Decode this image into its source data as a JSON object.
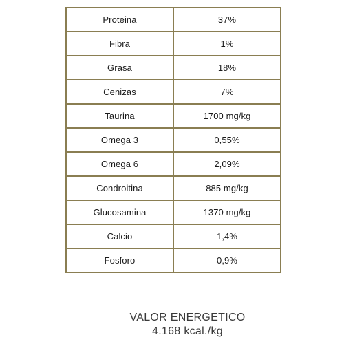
{
  "table": {
    "rows": [
      {
        "name": "Proteina",
        "value": "37%"
      },
      {
        "name": "Fibra",
        "value": "1%"
      },
      {
        "name": "Grasa",
        "value": "18%"
      },
      {
        "name": "Cenizas",
        "value": "7%"
      },
      {
        "name": "Taurina",
        "value": "1700 mg/kg"
      },
      {
        "name": "Omega 3",
        "value": "0,55%"
      },
      {
        "name": "Omega 6",
        "value": "2,09%"
      },
      {
        "name": "Condroitina",
        "value": "885 mg/kg"
      },
      {
        "name": "Glucosamina",
        "value": "1370 mg/kg"
      },
      {
        "name": "Calcio",
        "value": "1,4%"
      },
      {
        "name": "Fosforo",
        "value": "0,9%"
      }
    ],
    "border_color": "#8a7e52"
  },
  "energy": {
    "label": "VALOR ENERGETICO",
    "value": "4.168 kcal./kg"
  }
}
